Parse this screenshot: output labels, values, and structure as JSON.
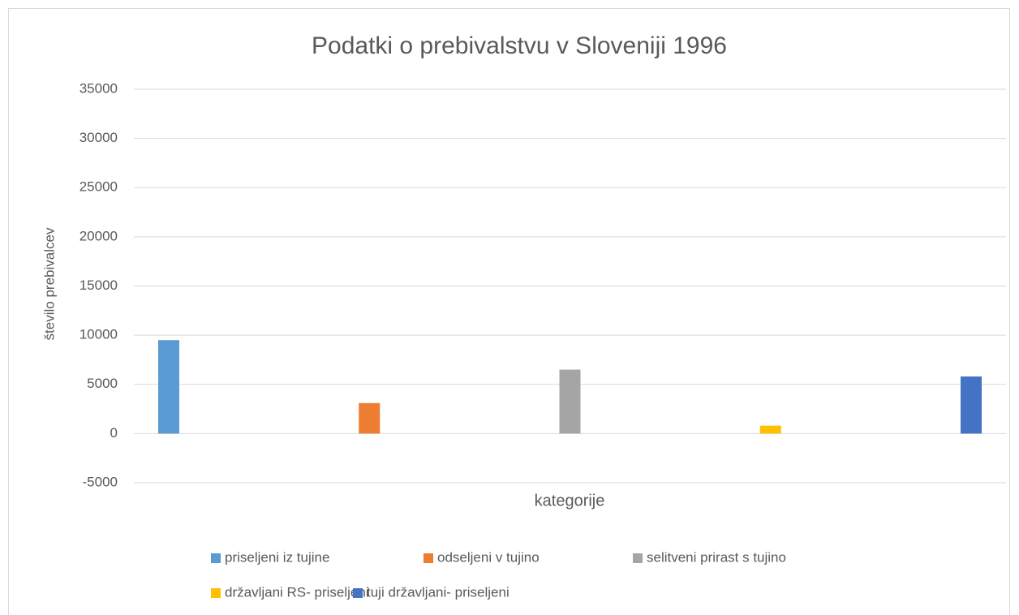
{
  "chart_data": {
    "type": "bar",
    "title": "Podatki o prebivalstvu v Sloveniji 1996",
    "x_label": "kategorije",
    "y_label": "število prebivalcev",
    "categories": [
      null
    ],
    "series": [
      {
        "name": "priseljeni iz tujine",
        "color": "#5b9bd5",
        "values": [
          9500
        ]
      },
      {
        "name": "odseljeni v tujino",
        "color": "#ed7d31",
        "values": [
          3100
        ]
      },
      {
        "name": "selitveni prirast s tujino",
        "color": "#a5a5a5",
        "values": [
          6500
        ]
      },
      {
        "name": "državljani RS- priseljeni",
        "color": "#ffc000",
        "values": [
          800
        ]
      },
      {
        "name": "tuji državljani- priseljeni",
        "color": "#4472c4",
        "values": [
          5800
        ]
      }
    ],
    "ylim": [
      -5000,
      35000
    ],
    "yticks": [
      -5000,
      0,
      5000,
      10000,
      15000,
      20000,
      25000,
      30000,
      35000
    ],
    "grid": true,
    "legend": "bottom"
  }
}
